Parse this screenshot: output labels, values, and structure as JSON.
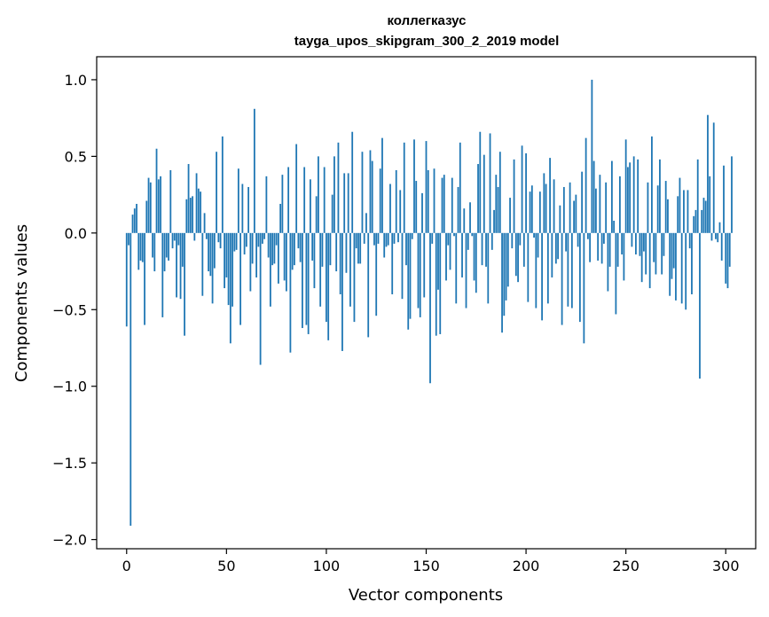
{
  "chart_data": {
    "type": "bar",
    "title": "коллегказус",
    "subtitle": "tayga_upos_skipgram_300_2_2019 model",
    "xlabel": "Vector components",
    "ylabel": "Components values",
    "xlim": [
      -15,
      315
    ],
    "ylim": [
      -2.06,
      1.15
    ],
    "xticks": [
      0,
      50,
      100,
      150,
      200,
      250,
      300
    ],
    "yticks": [
      -2.0,
      -1.5,
      -1.0,
      -0.5,
      0.0,
      0.5,
      1.0
    ],
    "ytick_labels": [
      "−2.0",
      "−1.5",
      "−1.0",
      "−0.5",
      "0.0",
      "0.5",
      "1.0"
    ],
    "bar_color": "#1f77b4",
    "grid": false,
    "legend": "none",
    "values": [
      -0.61,
      -0.08,
      -1.91,
      0.12,
      0.16,
      0.19,
      -0.24,
      -0.18,
      -0.19,
      -0.6,
      0.21,
      0.36,
      0.33,
      -0.16,
      -0.25,
      0.55,
      0.35,
      0.37,
      -0.55,
      -0.25,
      -0.16,
      -0.18,
      0.41,
      -0.1,
      -0.05,
      -0.42,
      -0.08,
      -0.43,
      -0.22,
      -0.67,
      0.22,
      0.45,
      0.23,
      0.24,
      -0.05,
      0.39,
      0.29,
      0.27,
      -0.41,
      0.13,
      -0.04,
      -0.25,
      -0.28,
      -0.46,
      -0.23,
      0.53,
      -0.06,
      -0.1,
      0.63,
      -0.36,
      -0.29,
      -0.47,
      -0.72,
      -0.48,
      -0.12,
      -0.11,
      0.42,
      -0.6,
      0.32,
      -0.14,
      -0.09,
      0.3,
      -0.38,
      -0.2,
      0.81,
      -0.29,
      -0.09,
      -0.86,
      -0.07,
      -0.04,
      0.37,
      -0.16,
      -0.48,
      -0.21,
      -0.2,
      -0.08,
      -0.33,
      0.19,
      0.38,
      -0.31,
      -0.38,
      0.43,
      -0.78,
      -0.24,
      -0.21,
      0.58,
      -0.1,
      -0.19,
      -0.62,
      0.43,
      -0.6,
      -0.66,
      0.35,
      -0.18,
      -0.36,
      0.24,
      0.5,
      -0.48,
      -0.22,
      0.43,
      -0.58,
      -0.7,
      -0.21,
      0.25,
      0.5,
      -0.25,
      0.59,
      -0.4,
      -0.77,
      0.39,
      -0.26,
      0.39,
      -0.48,
      0.66,
      -0.58,
      -0.1,
      -0.2,
      -0.2,
      0.53,
      -0.07,
      0.13,
      -0.68,
      0.54,
      0.47,
      -0.08,
      -0.54,
      -0.07,
      0.42,
      0.62,
      -0.16,
      -0.09,
      -0.08,
      0.32,
      -0.4,
      -0.07,
      0.41,
      -0.06,
      0.28,
      -0.43,
      0.59,
      -0.21,
      -0.63,
      -0.56,
      -0.04,
      0.61,
      0.34,
      -0.49,
      -0.55,
      0.26,
      -0.42,
      0.6,
      0.41,
      -0.98,
      -0.07,
      0.42,
      -0.67,
      -0.37,
      -0.66,
      0.36,
      0.38,
      -0.31,
      -0.08,
      -0.24,
      0.36,
      -0.02,
      -0.46,
      0.3,
      0.59,
      -0.29,
      0.16,
      -0.49,
      -0.11,
      0.2,
      -0.02,
      -0.31,
      -0.39,
      0.45,
      0.66,
      -0.21,
      0.51,
      -0.22,
      -0.46,
      0.65,
      -0.11,
      0.15,
      0.38,
      0.3,
      0.53,
      -0.65,
      -0.54,
      -0.44,
      -0.35,
      0.23,
      -0.1,
      0.48,
      -0.28,
      -0.32,
      -0.08,
      0.57,
      -0.22,
      0.52,
      -0.45,
      0.27,
      0.31,
      -0.03,
      -0.49,
      -0.16,
      0.27,
      -0.57,
      0.39,
      0.32,
      -0.46,
      0.49,
      -0.29,
      0.35,
      -0.2,
      -0.17,
      0.18,
      -0.6,
      0.3,
      -0.12,
      -0.48,
      0.33,
      -0.49,
      0.21,
      0.25,
      -0.09,
      -0.58,
      0.4,
      -0.72,
      0.62,
      -0.04,
      -0.19,
      1.0,
      0.47,
      0.29,
      -0.18,
      0.38,
      -0.2,
      -0.07,
      0.33,
      -0.38,
      -0.22,
      0.47,
      0.08,
      -0.53,
      -0.22,
      0.37,
      -0.14,
      -0.31,
      0.61,
      0.43,
      0.46,
      -0.09,
      0.5,
      -0.14,
      0.48,
      -0.15,
      -0.32,
      -0.12,
      -0.27,
      0.33,
      -0.36,
      0.63,
      -0.19,
      -0.27,
      0.31,
      0.48,
      -0.27,
      -0.15,
      0.34,
      0.22,
      -0.41,
      -0.3,
      -0.23,
      -0.44,
      0.24,
      0.36,
      -0.46,
      0.28,
      -0.5,
      0.28,
      -0.1,
      -0.4,
      0.11,
      0.15,
      0.48,
      -0.95,
      0.15,
      0.23,
      0.21,
      0.77,
      0.37,
      -0.05,
      0.72,
      -0.04,
      -0.06,
      0.07,
      -0.18,
      0.44,
      -0.33,
      -0.36,
      -0.22,
      0.5
    ]
  }
}
